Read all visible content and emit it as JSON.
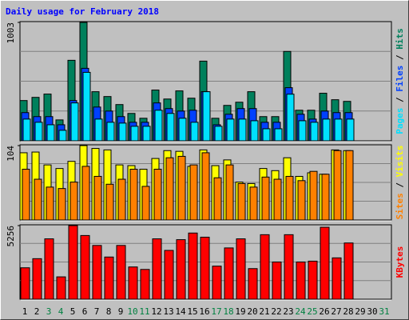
{
  "chart_data": {
    "type": "bar",
    "title": "Daily usage for February 2018",
    "categories": [
      "1",
      "2",
      "3",
      "4",
      "5",
      "6",
      "7",
      "8",
      "9",
      "10",
      "11",
      "12",
      "13",
      "14",
      "15",
      "16",
      "17",
      "18",
      "19",
      "20",
      "21",
      "22",
      "23",
      "24",
      "25",
      "26",
      "27",
      "28",
      "29",
      "30",
      "31"
    ],
    "category_colors": [
      "#000000",
      "#000000",
      "#008040",
      "#008040",
      "#000000",
      "#000000",
      "#000000",
      "#000000",
      "#000000",
      "#008040",
      "#008040",
      "#000000",
      "#000000",
      "#000000",
      "#000000",
      "#000000",
      "#008040",
      "#008040",
      "#000000",
      "#000000",
      "#000000",
      "#000000",
      "#000000",
      "#008040",
      "#008040",
      "#000000",
      "#000000",
      "#000000",
      "#000000",
      "#000000",
      "#008040"
    ],
    "legend_separator": " / ",
    "panels": [
      {
        "ylim": [
          0,
          1003
        ],
        "yticks": [
          1003
        ],
        "series": [
          {
            "name": "Hits",
            "color": "#00805c",
            "values": [
              341,
              368,
              396,
              177,
              682,
              1003,
              416,
              375,
              307,
              232,
              191,
              430,
              354,
              423,
              361,
              675,
              191,
              300,
              327,
              416,
              205,
              205,
              757,
              259,
              259,
              403,
              348,
              334,
              null,
              null,
              null
            ]
          },
          {
            "name": "Files",
            "color": "#0040ff",
            "values": [
              239,
              205,
              205,
              136,
              341,
              614,
              286,
              252,
              205,
              157,
              157,
              321,
              273,
              252,
              259,
              416,
              136,
              225,
              273,
              273,
              157,
              157,
              450,
              225,
              184,
              252,
              239,
              239,
              null,
              null,
              null
            ]
          },
          {
            "name": "Pages",
            "color": "#00e0ff",
            "values": [
              184,
              157,
              136,
              89,
              321,
              580,
              184,
              157,
              150,
              123,
              123,
              259,
              232,
              191,
              157,
              416,
              123,
              184,
              184,
              170,
              102,
              102,
              395,
              170,
              157,
              184,
              184,
              184,
              null,
              null,
              null
            ]
          }
        ]
      },
      {
        "ylim": [
          0,
          104
        ],
        "yticks": [
          104
        ],
        "series": [
          {
            "name": "Visits",
            "color": "#ffff00",
            "values": [
              94,
              95,
              77,
              72,
              82,
              104,
              100,
              98,
              77,
              76,
              71,
              86,
              97,
              96,
              75,
              98,
              76,
              84,
              53,
              51,
              72,
              69,
              87,
              61,
              66,
              64,
              98,
              97,
              null,
              null,
              null
            ]
          },
          {
            "name": "Sites",
            "color": "#ff8000",
            "values": [
              71,
              57,
              46,
              44,
              53,
              75,
              61,
              50,
              57,
              71,
              47,
              71,
              87,
              89,
              77,
              94,
              59,
              77,
              51,
              46,
              60,
              57,
              61,
              55,
              68,
              64,
              97,
              97,
              null,
              null,
              null
            ]
          }
        ]
      },
      {
        "ylim": [
          0,
          5256
        ],
        "yticks": [
          5256
        ],
        "series": [
          {
            "name": "KBytes",
            "color": "#ff0000",
            "values": [
              2244,
              2894,
              4311,
              1595,
              5256,
              4548,
              3839,
              3012,
              3839,
              2303,
              2126,
              4311,
              3485,
              4252,
              4725,
              4430,
              2362,
              3662,
              4311,
              2185,
              4607,
              2658,
              4607,
              2658,
              2717,
              5138,
              2953,
              4016,
              null,
              null,
              null
            ]
          }
        ]
      }
    ]
  }
}
